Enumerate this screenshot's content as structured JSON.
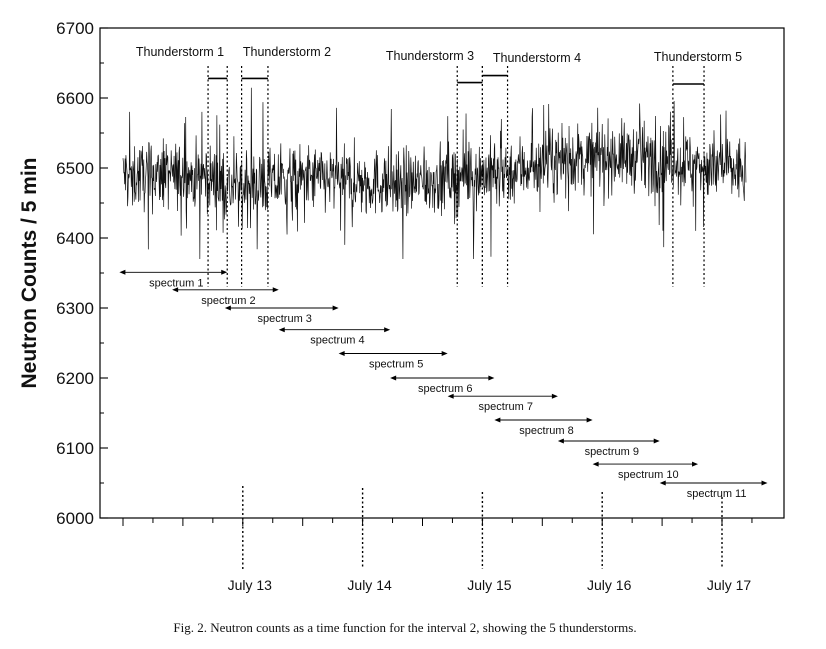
{
  "caption": "Fig. 2. Neutron counts as a time function for the interval 2, showing the 5 thunderstorms.",
  "chart_data": {
    "type": "line",
    "title": "",
    "xlabel": "",
    "ylabel": "Neutron Counts / 5 min",
    "ylim": [
      6000,
      6700
    ],
    "yticks": [
      6000,
      6100,
      6200,
      6300,
      6400,
      6500,
      6600,
      6700
    ],
    "xlim": [
      12.0,
      17.4
    ],
    "x_axis_labels": [
      {
        "x": 13,
        "label": "July 13"
      },
      {
        "x": 14,
        "label": "July 14"
      },
      {
        "x": 15,
        "label": "July 15"
      },
      {
        "x": 16,
        "label": "July 16"
      },
      {
        "x": 17,
        "label": "July 17"
      }
    ],
    "series": [
      {
        "name": "",
        "approx_x_range": [
          12.0,
          17.2
        ],
        "approx_mean": 6490,
        "approx_min": 6370,
        "approx_max": 6635,
        "segments": [
          {
            "x": 12.0,
            "mean": 6490
          },
          {
            "x": 12.7,
            "mean": 6488
          },
          {
            "x": 12.9,
            "mean": 6470
          },
          {
            "x": 13.2,
            "mean": 6478
          },
          {
            "x": 13.6,
            "mean": 6485
          },
          {
            "x": 14.0,
            "mean": 6480
          },
          {
            "x": 14.4,
            "mean": 6478
          },
          {
            "x": 14.8,
            "mean": 6488
          },
          {
            "x": 15.2,
            "mean": 6495
          },
          {
            "x": 15.6,
            "mean": 6510
          },
          {
            "x": 16.0,
            "mean": 6518
          },
          {
            "x": 16.4,
            "mean": 6515
          },
          {
            "x": 16.8,
            "mean": 6505
          },
          {
            "x": 17.2,
            "mean": 6495
          }
        ]
      }
    ],
    "thunderstorms": [
      {
        "label": "Thunderstorm 1",
        "start": 12.71,
        "end": 12.87,
        "level": 6628
      },
      {
        "label": "Thunderstorm 2",
        "start": 12.99,
        "end": 13.21,
        "level": 6628
      },
      {
        "label": "Thunderstorm 3",
        "start": 14.79,
        "end": 15.0,
        "level": 6622
      },
      {
        "label": "Thunderstorm 4",
        "start": 15.0,
        "end": 15.21,
        "level": 6632
      },
      {
        "label": "Thunderstorm 5",
        "start": 16.59,
        "end": 16.85,
        "level": 6620
      }
    ],
    "spectra": [
      {
        "label": "spectrum 1",
        "start": 11.97,
        "end": 12.87,
        "y": 6351
      },
      {
        "label": "spectrum 2",
        "start": 12.41,
        "end": 13.3,
        "y": 6326
      },
      {
        "label": "spectrum 3",
        "start": 12.85,
        "end": 13.8,
        "y": 6300
      },
      {
        "label": "spectrum 4",
        "start": 13.3,
        "end": 14.23,
        "y": 6269
      },
      {
        "label": "spectrum 5",
        "start": 13.8,
        "end": 14.71,
        "y": 6235
      },
      {
        "label": "spectrum 6",
        "start": 14.23,
        "end": 15.1,
        "y": 6200
      },
      {
        "label": "spectrum 7",
        "start": 14.71,
        "end": 15.63,
        "y": 6174
      },
      {
        "label": "spectrum 8",
        "start": 15.1,
        "end": 15.92,
        "y": 6140
      },
      {
        "label": "spectrum 9",
        "start": 15.63,
        "end": 16.48,
        "y": 6110
      },
      {
        "label": "spectrum 10",
        "start": 15.92,
        "end": 16.8,
        "y": 6077
      },
      {
        "label": "spectrum 11",
        "start": 16.48,
        "end": 17.38,
        "y": 6050
      }
    ]
  }
}
